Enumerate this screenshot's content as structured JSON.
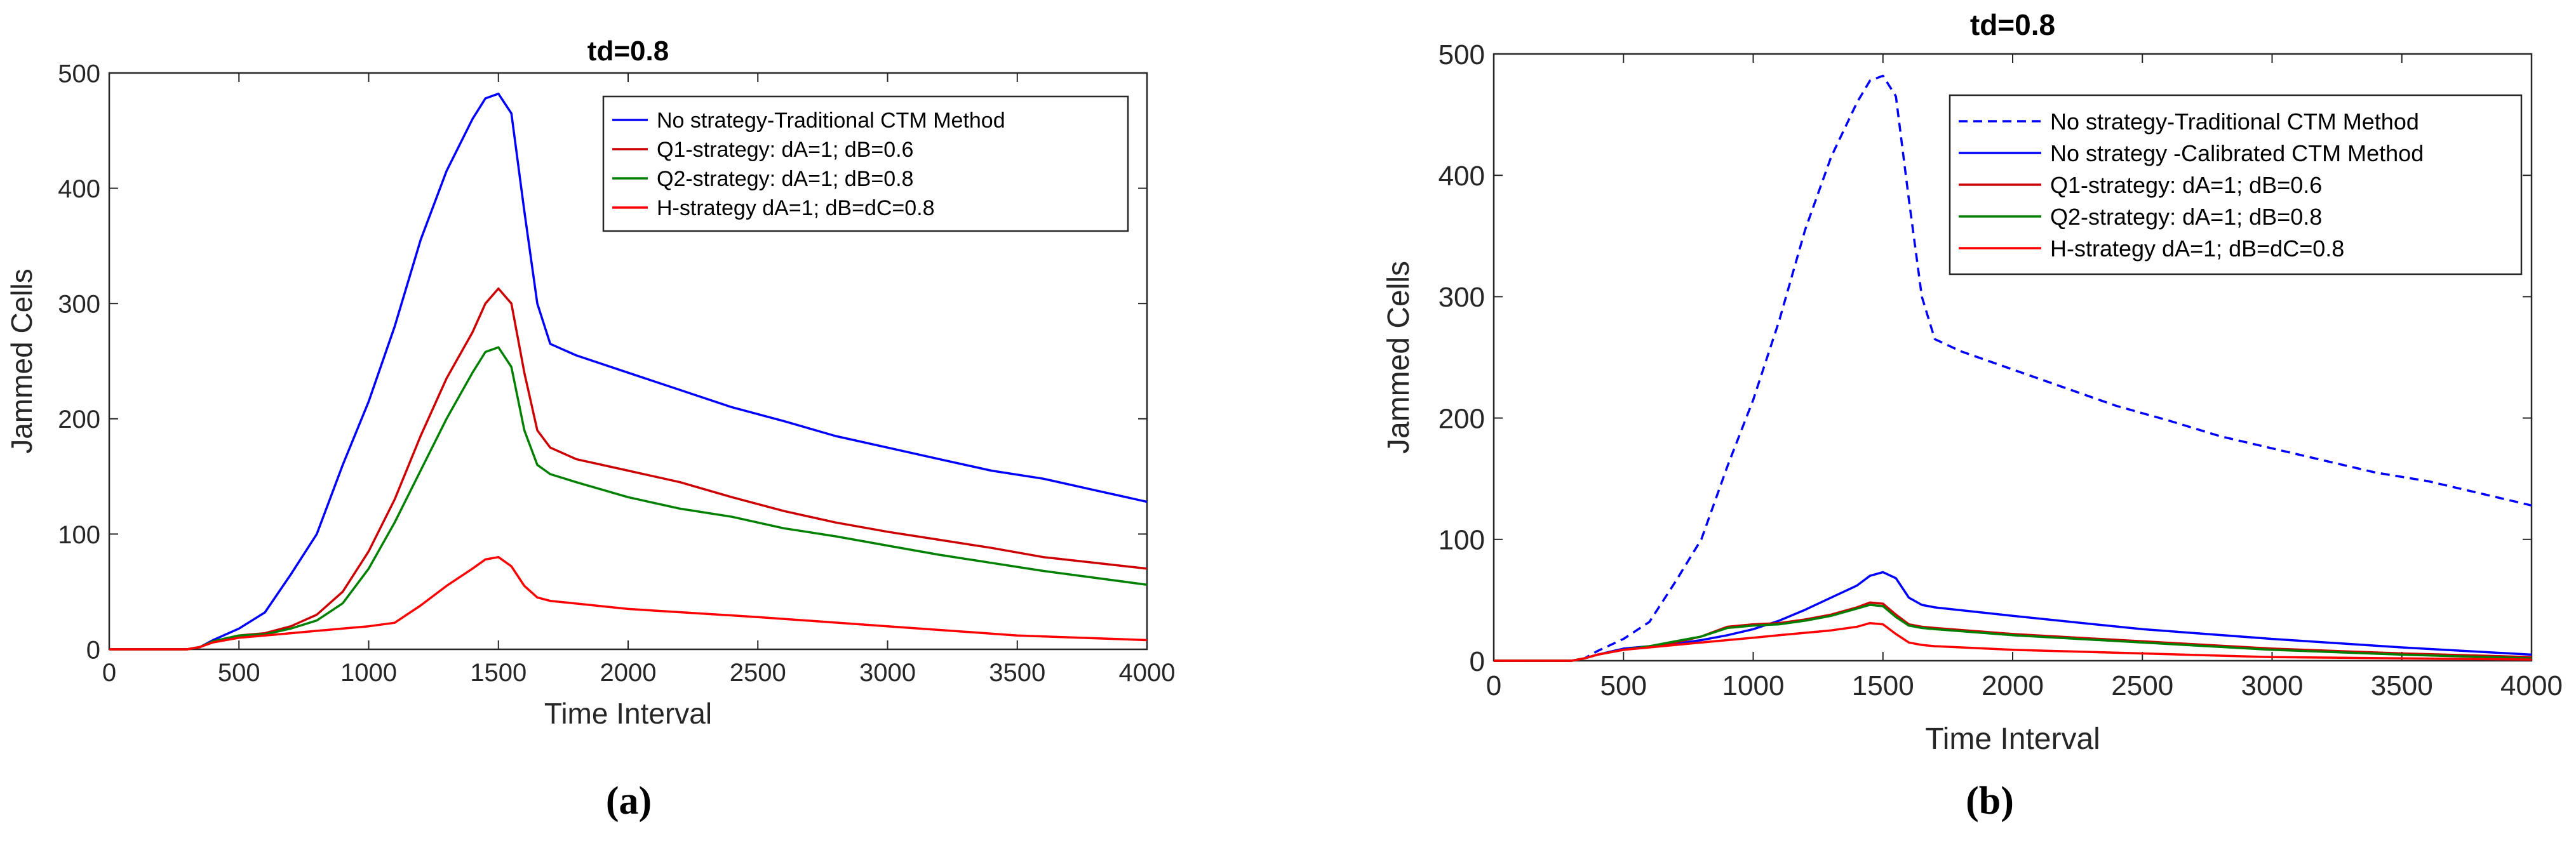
{
  "chart_data": [
    {
      "type": "line",
      "title": "td=0.8",
      "xlabel": "Time Interval",
      "ylabel": "Jammed Cells",
      "xlim": [
        0,
        4000
      ],
      "ylim": [
        0,
        500
      ],
      "xticks": [
        0,
        500,
        1000,
        1500,
        2000,
        2500,
        3000,
        3500,
        4000
      ],
      "yticks": [
        0,
        100,
        200,
        300,
        400,
        500
      ],
      "caption": "(a)",
      "legend_position": "top-right",
      "series": [
        {
          "name": "No strategy-Traditional CTM Method",
          "color": "#0000ff",
          "style": "solid",
          "x": [
            0,
            300,
            350,
            400,
            500,
            600,
            700,
            800,
            900,
            1000,
            1100,
            1200,
            1300,
            1400,
            1450,
            1500,
            1550,
            1600,
            1650,
            1700,
            1800,
            2000,
            2200,
            2400,
            2600,
            2800,
            3000,
            3200,
            3400,
            3600,
            3800,
            4000
          ],
          "y": [
            0,
            0,
            2,
            8,
            18,
            32,
            65,
            100,
            160,
            215,
            280,
            355,
            415,
            460,
            478,
            482,
            465,
            380,
            300,
            265,
            255,
            240,
            225,
            210,
            198,
            185,
            175,
            165,
            155,
            148,
            138,
            128
          ]
        },
        {
          "name": "Q1-strategy: dA=1; dB=0.6",
          "color": "#cc0000",
          "style": "solid",
          "x": [
            0,
            300,
            350,
            400,
            500,
            600,
            700,
            800,
            900,
            1000,
            1100,
            1200,
            1300,
            1400,
            1450,
            1500,
            1550,
            1600,
            1650,
            1700,
            1800,
            2000,
            2200,
            2400,
            2600,
            2800,
            3000,
            3200,
            3400,
            3600,
            3800,
            4000
          ],
          "y": [
            0,
            0,
            2,
            7,
            12,
            14,
            20,
            30,
            50,
            85,
            130,
            185,
            235,
            275,
            300,
            313,
            300,
            240,
            190,
            175,
            165,
            155,
            145,
            132,
            120,
            110,
            102,
            95,
            88,
            80,
            75,
            70
          ]
        },
        {
          "name": "Q2-strategy: dA=1; dB=0.8",
          "color": "#008000",
          "style": "solid",
          "x": [
            0,
            300,
            350,
            400,
            500,
            600,
            700,
            800,
            900,
            1000,
            1100,
            1200,
            1300,
            1400,
            1450,
            1500,
            1550,
            1600,
            1650,
            1700,
            1800,
            2000,
            2200,
            2400,
            2600,
            2800,
            3000,
            3200,
            3400,
            3600,
            3800,
            4000
          ],
          "y": [
            0,
            0,
            2,
            7,
            12,
            13,
            18,
            25,
            40,
            70,
            110,
            155,
            200,
            240,
            258,
            262,
            245,
            190,
            160,
            152,
            145,
            132,
            122,
            115,
            105,
            98,
            90,
            82,
            75,
            68,
            62,
            56
          ]
        },
        {
          "name": "H-strategy dA=1; dB=dC=0.8",
          "color": "#ff0000",
          "style": "solid",
          "x": [
            0,
            300,
            350,
            400,
            500,
            600,
            700,
            800,
            900,
            1000,
            1100,
            1200,
            1300,
            1400,
            1450,
            1500,
            1550,
            1600,
            1650,
            1700,
            2000,
            2500,
            3000,
            3500,
            4000
          ],
          "y": [
            0,
            0,
            2,
            6,
            10,
            12,
            14,
            16,
            18,
            20,
            23,
            38,
            55,
            70,
            78,
            80,
            72,
            55,
            45,
            42,
            35,
            28,
            20,
            12,
            8
          ]
        }
      ]
    },
    {
      "type": "line",
      "title": "td=0.8",
      "xlabel": "Time Interval",
      "ylabel": "Jammed Cells",
      "xlim": [
        0,
        4000
      ],
      "ylim": [
        0,
        500
      ],
      "xticks": [
        0,
        500,
        1000,
        1500,
        2000,
        2500,
        3000,
        3500,
        4000
      ],
      "yticks": [
        0,
        100,
        200,
        300,
        400,
        500
      ],
      "caption": "(b)",
      "legend_position": "top-right",
      "series": [
        {
          "name": "No strategy-Traditional CTM Method",
          "color": "#0000ff",
          "style": "dashed",
          "x": [
            0,
            300,
            350,
            400,
            500,
            600,
            700,
            800,
            900,
            1000,
            1100,
            1200,
            1300,
            1400,
            1450,
            1500,
            1550,
            1600,
            1650,
            1700,
            1800,
            2000,
            2200,
            2400,
            2600,
            2800,
            3000,
            3200,
            3400,
            3600,
            3800,
            4000
          ],
          "y": [
            0,
            0,
            2,
            8,
            18,
            32,
            65,
            100,
            160,
            215,
            280,
            355,
            415,
            460,
            478,
            482,
            465,
            380,
            300,
            265,
            255,
            240,
            225,
            210,
            198,
            185,
            175,
            165,
            155,
            148,
            138,
            128
          ]
        },
        {
          "name": "No strategy -Calibrated CTM Method",
          "color": "#0000ff",
          "style": "solid",
          "x": [
            0,
            300,
            350,
            400,
            500,
            600,
            700,
            800,
            900,
            1000,
            1100,
            1200,
            1300,
            1400,
            1450,
            1500,
            1550,
            1600,
            1650,
            1700,
            2000,
            2500,
            3000,
            3500,
            4000
          ],
          "y": [
            0,
            0,
            2,
            5,
            10,
            12,
            14,
            17,
            21,
            26,
            33,
            42,
            52,
            62,
            70,
            73,
            68,
            52,
            46,
            44,
            37,
            26,
            18,
            11,
            5
          ]
        },
        {
          "name": "Q1-strategy: dA=1; dB=0.6",
          "color": "#cc0000",
          "style": "solid",
          "x": [
            0,
            300,
            350,
            400,
            500,
            600,
            700,
            800,
            900,
            1000,
            1100,
            1200,
            1300,
            1400,
            1450,
            1500,
            1550,
            1600,
            1650,
            1700,
            2000,
            2500,
            3000,
            3500,
            4000
          ],
          "y": [
            0,
            0,
            2,
            5,
            9,
            12,
            15,
            20,
            28,
            30,
            31,
            34,
            38,
            44,
            48,
            47,
            38,
            30,
            28,
            27,
            22,
            16,
            10,
            6,
            3
          ]
        },
        {
          "name": "Q2-strategy: dA=1; dB=0.8",
          "color": "#008000",
          "style": "solid",
          "x": [
            0,
            300,
            350,
            400,
            500,
            600,
            700,
            800,
            900,
            1000,
            1100,
            1200,
            1300,
            1400,
            1450,
            1500,
            1550,
            1600,
            1650,
            1700,
            2000,
            2500,
            3000,
            3500,
            4000
          ],
          "y": [
            0,
            0,
            2,
            5,
            9,
            12,
            16,
            20,
            27,
            29,
            30,
            33,
            37,
            43,
            46,
            45,
            36,
            29,
            27,
            26,
            21,
            15,
            9,
            5,
            2
          ]
        },
        {
          "name": "H-strategy dA=1; dB=dC=0.8",
          "color": "#ff0000",
          "style": "solid",
          "x": [
            0,
            300,
            350,
            400,
            500,
            600,
            700,
            800,
            900,
            1000,
            1100,
            1200,
            1300,
            1400,
            1450,
            1500,
            1550,
            1600,
            1650,
            1700,
            2000,
            2500,
            3000,
            3500,
            4000
          ],
          "y": [
            0,
            0,
            2,
            5,
            9,
            11,
            13,
            15,
            17,
            19,
            21,
            23,
            25,
            28,
            31,
            30,
            22,
            15,
            13,
            12,
            9,
            6,
            3,
            2,
            1
          ]
        }
      ]
    }
  ]
}
